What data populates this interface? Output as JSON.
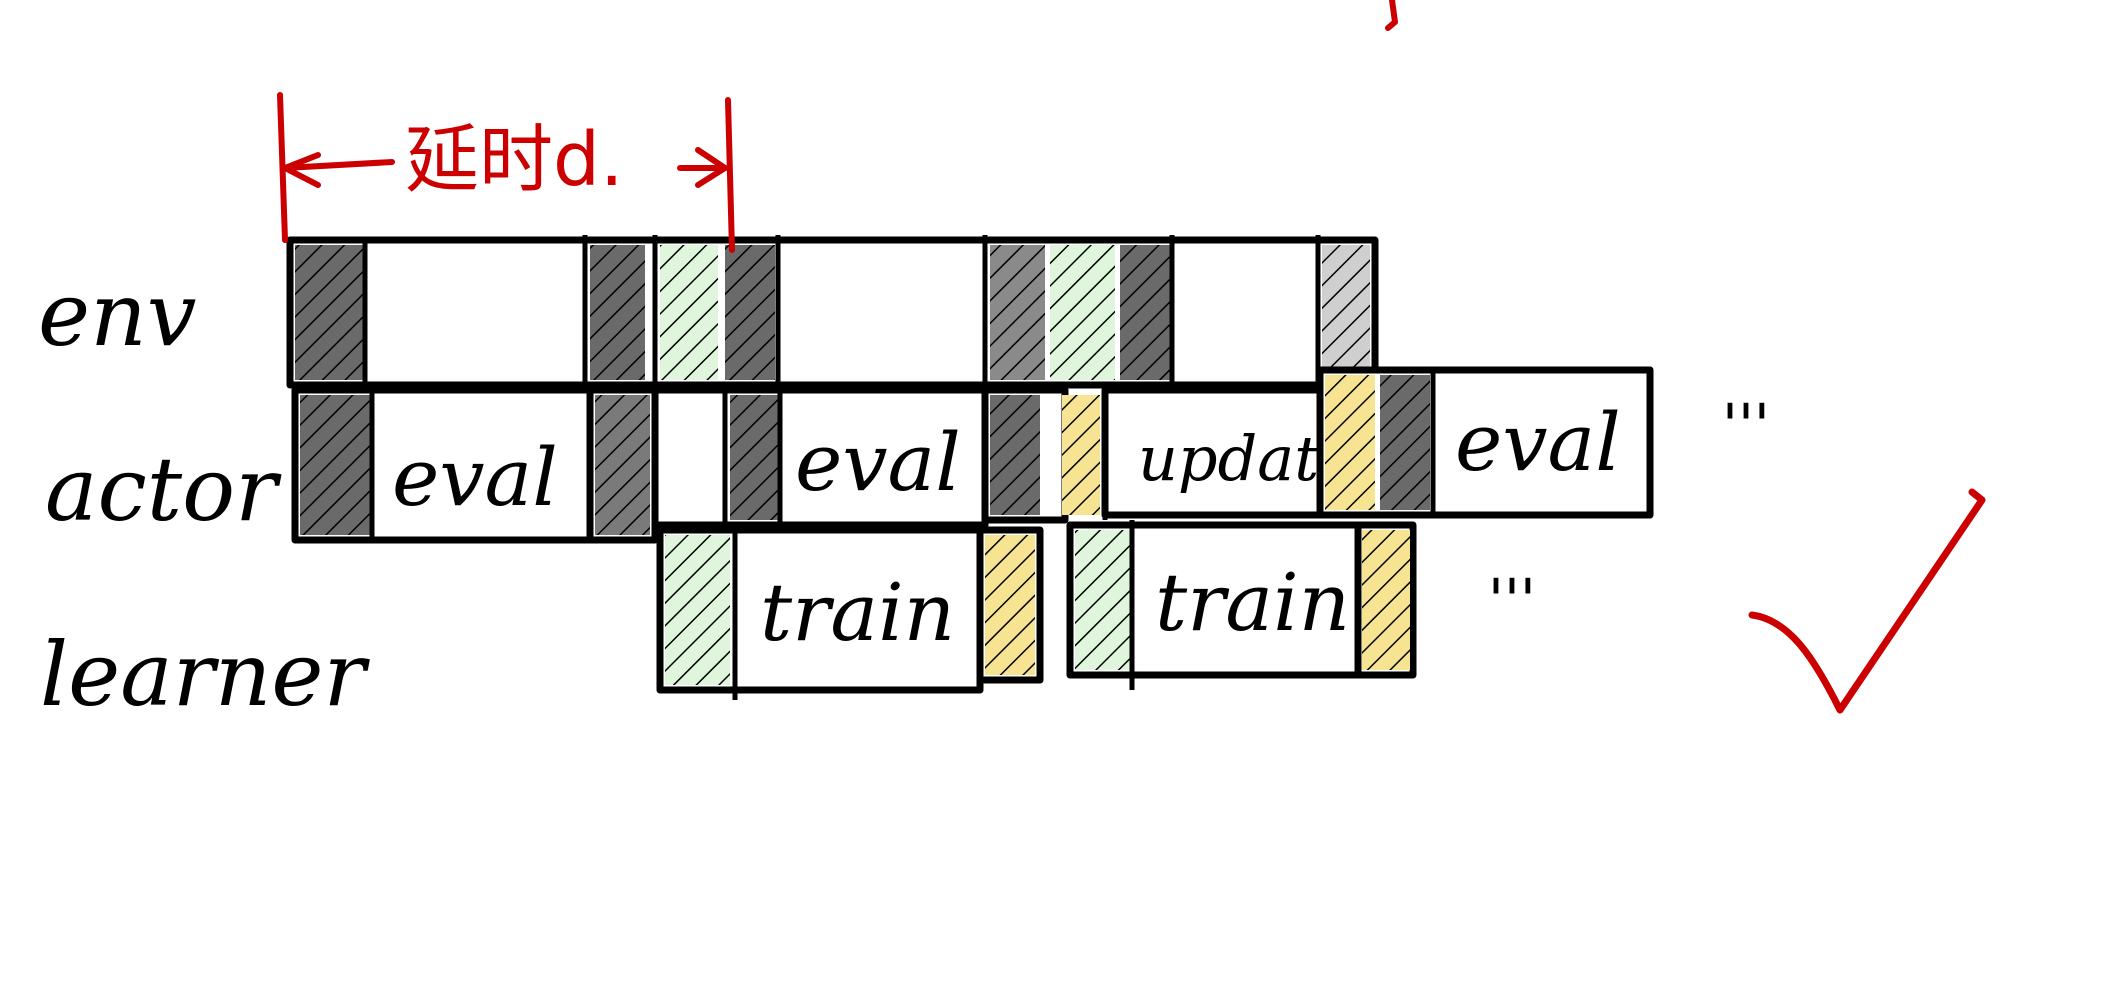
{
  "lanes": {
    "env": "env",
    "actor": "actor",
    "learner": "learner"
  },
  "actor_row": {
    "eval_1": "eval",
    "eval_2": "eval",
    "update": "update",
    "eval_3": "eval",
    "ellipsis": "'''"
  },
  "learner_row": {
    "train_1": "train",
    "train_2": "train",
    "ellipsis": "'''"
  },
  "annotation": {
    "interval_label": "延时d."
  },
  "colors": {
    "ink": "#000000",
    "accent_red": "#cc0000",
    "dark_gray": "#5c5c5c",
    "light_green": "#dff6dd",
    "light_yellow": "#f7e493"
  }
}
